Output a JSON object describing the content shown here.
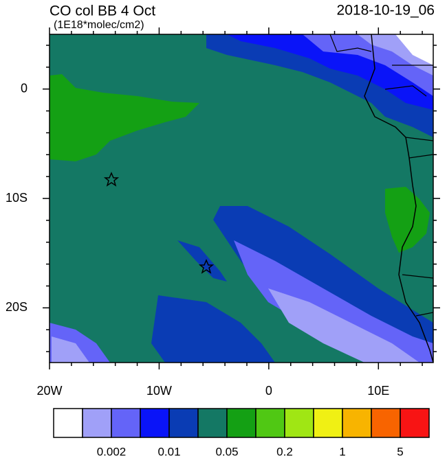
{
  "title": "CO col BB 4 Oct",
  "subtitle": "(1E18*molec/cm2)",
  "date": "2018-10-19_06",
  "lon_range": [
    -20,
    15
  ],
  "lat_range": [
    -25,
    5
  ],
  "xticks": [
    {
      "value": -20,
      "label": "20W"
    },
    {
      "value": -10,
      "label": "10W"
    },
    0,
    {
      "value": 10,
      "label": "10E"
    }
  ],
  "yticks": [
    0,
    {
      "value": -10,
      "label": "10S"
    },
    {
      "value": -20,
      "label": "20S"
    }
  ],
  "xminor": [
    -18,
    -16,
    -14,
    -12,
    -8,
    -6,
    -4,
    -2,
    2,
    4,
    6,
    8,
    12,
    14
  ],
  "yminor": [
    4,
    2,
    -2,
    -4,
    -6,
    -8,
    -12,
    -14,
    -16,
    -18,
    -22,
    -24
  ],
  "colorbar": {
    "colors": [
      "#ffffff",
      "#a0a0f8",
      "#6464f8",
      "#0a14f8",
      "#0a3cb4",
      "#147864",
      "#14a014",
      "#50c814",
      "#a0e614",
      "#f0f014",
      "#f8b400",
      "#f86400",
      "#f81414"
    ],
    "labels": [
      "0.002",
      "0.01",
      "0.05",
      "0.2",
      "1",
      "5"
    ]
  }
}
